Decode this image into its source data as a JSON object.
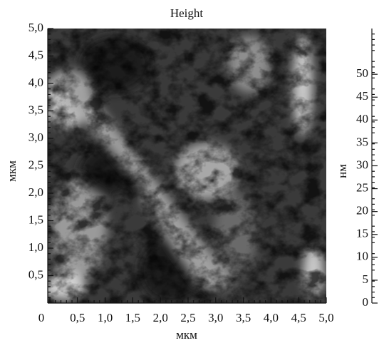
{
  "chart_data": {
    "type": "heatmap",
    "title": "Height",
    "xlabel": "мкм",
    "ylabel": "мкм",
    "xlim": [
      0,
      5
    ],
    "ylim": [
      0,
      5
    ],
    "xticks": [
      0,
      {
        "value": 0.5,
        "label": "0,5"
      },
      {
        "value": 1,
        "label": "1,0"
      },
      {
        "value": 1.5,
        "label": "1,5"
      },
      {
        "value": 2,
        "label": "2,0"
      },
      {
        "value": 2.5,
        "label": "2,5"
      },
      {
        "value": 3,
        "label": "3,0"
      },
      {
        "value": 3.5,
        "label": "3,5"
      },
      {
        "value": 4,
        "label": "4,0"
      },
      {
        "value": 4.5,
        "label": "4,5"
      },
      {
        "value": 5,
        "label": "5,0"
      }
    ],
    "yticks": [
      {
        "value": 0.5,
        "label": "0,5"
      },
      {
        "value": 1,
        "label": "1,0"
      },
      {
        "value": 1.5,
        "label": "1,5"
      },
      {
        "value": 2,
        "label": "2,0"
      },
      {
        "value": 2.5,
        "label": "2,5"
      },
      {
        "value": 3,
        "label": "3,0"
      },
      {
        "value": 3.5,
        "label": "3,5"
      },
      {
        "value": 4,
        "label": "4,0"
      },
      {
        "value": 4.5,
        "label": "4,5"
      },
      {
        "value": 5,
        "label": "5,0"
      }
    ],
    "colorbar": {
      "label": "нм",
      "lim": [
        0,
        60
      ],
      "ticks": [
        0,
        5,
        10,
        15,
        20,
        25,
        30,
        35,
        40,
        45,
        50
      ]
    }
  }
}
